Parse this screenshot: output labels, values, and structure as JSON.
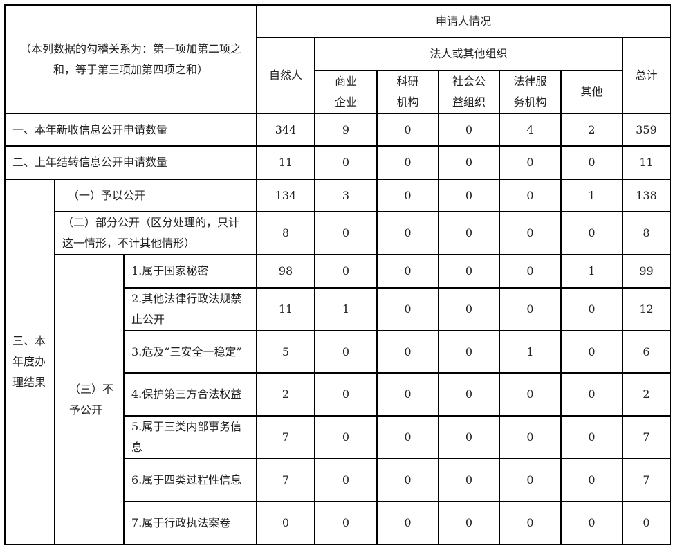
{
  "header": {
    "note": "（本列数据的勾稽关系为：第一项加第二项之和，等于第三项加第四项之和）",
    "applicant_status": "申请人情况",
    "natural_person": "自然人",
    "legal_org": "法人或其他组织",
    "total": "总计",
    "sub_columns": [
      "商业企业",
      "科研机构",
      "社会公益组织",
      "法律服务机构",
      "其他"
    ]
  },
  "rows": {
    "new_requests": {
      "label": "一、本年新收信息公开申请数量",
      "values": [
        "344",
        "9",
        "0",
        "0",
        "4",
        "2",
        "359"
      ]
    },
    "carried_over": {
      "label": "二、上年结转信息公开申请数量",
      "values": [
        "11",
        "0",
        "0",
        "0",
        "0",
        "0",
        "11"
      ]
    },
    "results_label": "三、本年度办理结果",
    "disclosed": {
      "label": "（一）予以公开",
      "values": [
        "134",
        "3",
        "0",
        "0",
        "0",
        "1",
        "138"
      ]
    },
    "partial": {
      "label": "（二）部分公开（区分处理的，只计这一情形，不计其他情形）",
      "values": [
        "8",
        "0",
        "0",
        "0",
        "0",
        "0",
        "8"
      ]
    },
    "not_disclosed_label": "（三）不予公开",
    "not_disclosed": [
      {
        "label": "1.属于国家秘密",
        "values": [
          "98",
          "0",
          "0",
          "0",
          "0",
          "1",
          "99"
        ]
      },
      {
        "label": "2.其他法律行政法规禁止公开",
        "values": [
          "11",
          "1",
          "0",
          "0",
          "0",
          "0",
          "12"
        ]
      },
      {
        "label": "3.危及“三安全一稳定”",
        "values": [
          "5",
          "0",
          "0",
          "0",
          "1",
          "0",
          "6"
        ]
      },
      {
        "label": "4.保护第三方合法权益",
        "values": [
          "2",
          "0",
          "0",
          "0",
          "0",
          "0",
          "2"
        ]
      },
      {
        "label": "5.属于三类内部事务信息",
        "values": [
          "7",
          "0",
          "0",
          "0",
          "0",
          "0",
          "7"
        ]
      },
      {
        "label": "6.属于四类过程性信息",
        "values": [
          "7",
          "0",
          "0",
          "0",
          "0",
          "0",
          "7"
        ]
      },
      {
        "label": "7.属于行政执法案卷",
        "values": [
          "0",
          "0",
          "0",
          "0",
          "0",
          "0",
          "0"
        ]
      }
    ]
  }
}
